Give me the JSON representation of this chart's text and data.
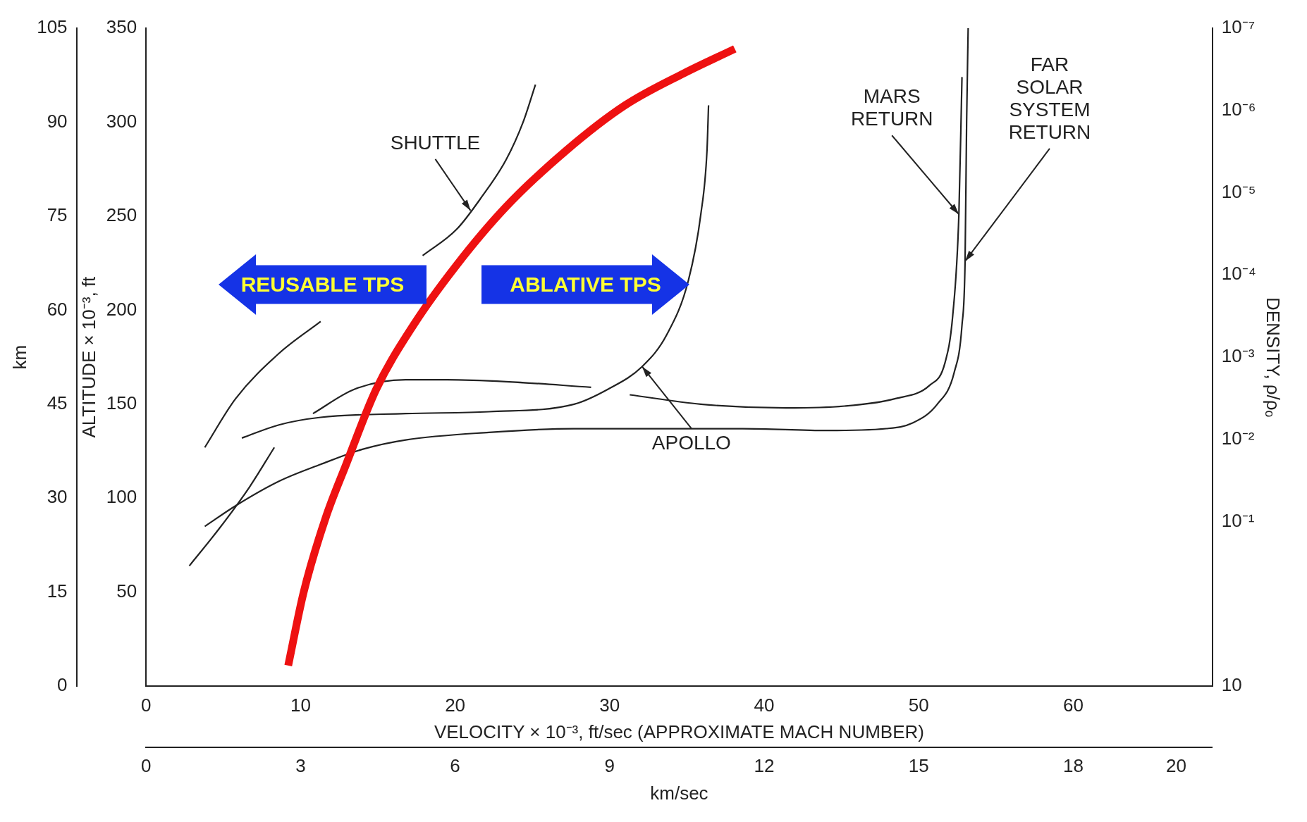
{
  "chart_data": {
    "type": "line",
    "xlabel": "VELOCITY × 10⁻³, ft/sec (APPROXIMATE MACH NUMBER)",
    "x2label": "km/sec",
    "ylabel": "ALTITUDE × 10⁻³, ft",
    "y2label": "km",
    "y3label": "DENSITY, ρ/ρₒ",
    "xlim": [
      0,
      69
    ],
    "xticks": [
      0,
      10,
      20,
      30,
      40,
      50,
      60
    ],
    "x2lim": [
      0,
      20.7
    ],
    "x2ticks": [
      0,
      3,
      6,
      9,
      12,
      15,
      18,
      20
    ],
    "ylim": [
      0,
      350
    ],
    "yticks": [
      50,
      100,
      150,
      200,
      250,
      300,
      350
    ],
    "y2lim": [
      0,
      105
    ],
    "y2ticks": [
      0,
      15,
      30,
      45,
      60,
      75,
      90,
      105
    ],
    "y3lim": [
      10,
      1e-07
    ],
    "y3ticks": [
      10,
      {
        "value": 0.1,
        "label": "10⁻¹"
      },
      {
        "value": 0.01,
        "label": "10⁻²"
      },
      {
        "value": 0.001,
        "label": "10⁻³"
      },
      {
        "value": 0.0001,
        "label": "10⁻⁴"
      },
      {
        "value": 1e-05,
        "label": "10⁻⁵"
      },
      {
        "value": 1e-06,
        "label": "10⁻⁶"
      },
      {
        "value": 1e-07,
        "label": "10⁻⁷"
      }
    ],
    "log": "y3",
    "grid": false,
    "legend": false,
    "marker": "none",
    "line_style": "solid",
    "series": [
      {
        "color": "#ee1111",
        "x": [
          9.2,
          10.2,
          11.6,
          12.95,
          14.9,
          17.3,
          20.1,
          23.3,
          27.2,
          31,
          34.8,
          38.1
        ],
        "values": [
          11,
          50,
          89,
          118,
          158,
          192,
          224,
          255,
          285,
          309,
          326,
          339
        ]
      },
      {
        "color": "#222222",
        "x": [
          3.8,
          5.8,
          8.6,
          11.3,
          13.5,
          15.7,
          17.9,
          20.1,
          21.7,
          23.3,
          24.4,
          25.2
        ],
        "values": [
          127,
          153,
          177,
          194,
          null,
          null,
          229,
          243,
          260,
          280,
          300,
          320
        ]
      },
      {
        "color": "#222222",
        "x": [
          2.8,
          4.75,
          6.7,
          8.3
        ],
        "values": [
          64,
          84,
          106,
          127
        ]
      },
      {
        "color": "#222222",
        "x": [
          3.8,
          5.8,
          8.6,
          11.3,
          14,
          16.8,
          22.2,
          27.7,
          33.2,
          38.6,
          44.1,
          47.9,
          49.6,
          51.2,
          52.3,
          52.8,
          53,
          53.1,
          53.2
        ],
        "values": [
          85,
          96,
          109,
          118,
          126,
          131,
          135,
          137,
          137,
          137,
          136,
          137,
          140,
          150,
          167,
          192,
          226,
          300,
          350
        ]
      },
      {
        "color": "#222222",
        "x": [
          6.2,
          8.6,
          11.3,
          16.8,
          22.2,
          27.7,
          29.9,
          32.1,
          33.7,
          35.1,
          35.9,
          36.3,
          36.4
        ],
        "values": [
          132,
          139,
          143,
          145,
          146,
          150,
          158,
          170,
          187,
          216,
          251,
          285,
          309
        ]
      },
      {
        "color": "#222222",
        "x": [
          10.8,
          13.5,
          16.8,
          19.5,
          23.3,
          28.8
        ],
        "values": [
          145,
          158,
          163,
          163,
          162,
          159
        ]
      },
      {
        "color": "#222222",
        "x": [
          31.3,
          35.9,
          41.4,
          45.2,
          48.5,
          50.7,
          51.7,
          52.2,
          52.6,
          52.8
        ],
        "values": [
          155,
          150,
          148,
          149,
          153,
          160,
          172,
          197,
          251,
          324
        ]
      }
    ],
    "annotations": [
      {
        "text": "SHUTTLE",
        "x": 21,
        "y": 253
      },
      {
        "text": "APOLLO",
        "x": 32.1,
        "y": 170
      },
      {
        "text": "MARS RETURN",
        "x": 52.6,
        "y": 251
      },
      {
        "text": "FAR SOLAR SYSTEM RETURN",
        "x": 53,
        "y": 226
      },
      "REUSABLE TPS",
      "ABLATIVE TPS"
    ]
  }
}
